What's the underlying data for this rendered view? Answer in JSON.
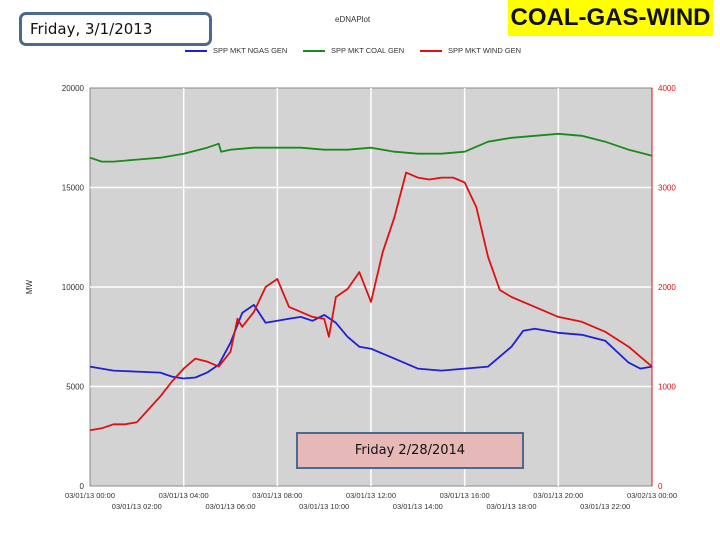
{
  "header": {
    "date_label": "Friday, 3/1/2013",
    "title_badge": "COAL-GAS-WIND",
    "plot_title": "eDNAPlot"
  },
  "comparison_label": "Friday  2/28/2014",
  "chart_data": {
    "type": "line",
    "ylabel": "MW",
    "ylim_left": [
      0,
      20000
    ],
    "ylim_right": [
      0,
      4000
    ],
    "left_ticks": [
      "0",
      "5000",
      "10000",
      "15000",
      "20000"
    ],
    "right_ticks": [
      "0",
      "1000",
      "2000",
      "3000",
      "4000"
    ],
    "x_ticks_top": [
      "03/01/13 00:00",
      "03/01/13 04:00",
      "03/01/13 08:00",
      "03/01/13 12:00",
      "03/01/13 16:00",
      "03/01/13 20:00",
      "03/02/13 00:00"
    ],
    "x_ticks_bottom": [
      "03/01/13 02:00",
      "03/01/13 06:00",
      "03/01/13 10:00",
      "03/01/13 14:00",
      "03/01/13 18:00",
      "03/01/13 22:00"
    ],
    "x_hours": [
      0,
      24
    ],
    "grid": true,
    "legend_position": "top",
    "series": [
      {
        "name": "SPP MKT NGAS GEN",
        "axis": "left",
        "color": "#1f1fd6",
        "x": [
          0,
          1,
          2,
          3,
          3.5,
          4,
          4.5,
          5,
          5.5,
          6,
          6.5,
          7,
          7.5,
          8,
          8.5,
          9,
          9.5,
          10,
          10.5,
          11,
          11.5,
          12,
          13,
          14,
          15,
          16,
          17,
          18,
          18.5,
          19,
          20,
          21,
          22,
          23,
          23.5,
          24
        ],
        "y": [
          6000,
          5800,
          5750,
          5700,
          5500,
          5400,
          5450,
          5700,
          6100,
          7200,
          8700,
          9100,
          8200,
          8300,
          8400,
          8500,
          8300,
          8600,
          8200,
          7500,
          7000,
          6900,
          6400,
          5900,
          5800,
          5900,
          6000,
          7000,
          7800,
          7900,
          7700,
          7600,
          7300,
          6200,
          5900,
          6000
        ]
      },
      {
        "name": "SPP MKT COAL GEN",
        "axis": "left",
        "color": "#1a8a1a",
        "x": [
          0,
          0.5,
          1,
          2,
          3,
          4,
          5,
          5.5,
          5.6,
          6,
          7,
          8,
          9,
          10,
          11,
          12,
          13,
          14,
          15,
          16,
          17,
          18,
          19,
          20,
          21,
          22,
          23,
          24
        ],
        "y": [
          16500,
          16300,
          16300,
          16400,
          16500,
          16700,
          17000,
          17200,
          16800,
          16900,
          17000,
          17000,
          17000,
          16900,
          16900,
          17000,
          16800,
          16700,
          16700,
          16800,
          17300,
          17500,
          17600,
          17700,
          17600,
          17300,
          16900,
          16600
        ]
      },
      {
        "name": "SPP MKT WIND GEN",
        "axis": "right",
        "color": "#e01010",
        "x": [
          0,
          0.5,
          1,
          1.5,
          2,
          3,
          3.5,
          4,
          4.5,
          5,
          5.5,
          6,
          6.3,
          6.5,
          7,
          7.5,
          8,
          8.5,
          9,
          9.5,
          10,
          10.2,
          10.5,
          11,
          11.5,
          12,
          12.5,
          13,
          13.5,
          14,
          14.5,
          15,
          15.5,
          16,
          16.5,
          17,
          17.5,
          18,
          19,
          20,
          21,
          22,
          23,
          24
        ],
        "y": [
          560,
          580,
          620,
          620,
          640,
          900,
          1050,
          1180,
          1280,
          1250,
          1200,
          1350,
          1680,
          1600,
          1750,
          2000,
          2080,
          1800,
          1750,
          1700,
          1680,
          1500,
          1900,
          1980,
          2150,
          1850,
          2350,
          2700,
          3150,
          3100,
          3080,
          3100,
          3100,
          3050,
          2800,
          2300,
          1970,
          1900,
          1800,
          1700,
          1650,
          1550,
          1400,
          1200
        ]
      }
    ]
  }
}
